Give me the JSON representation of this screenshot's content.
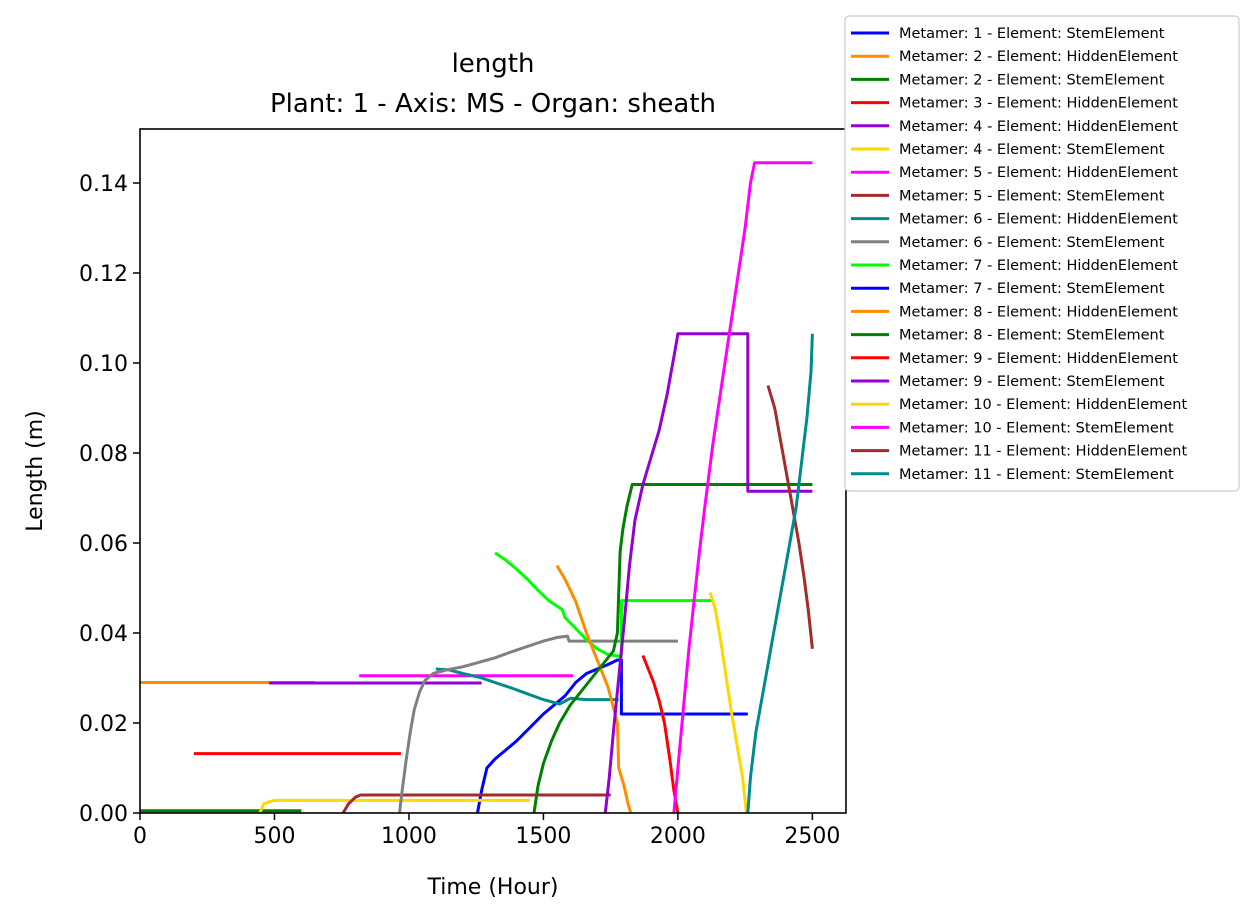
{
  "chart_data": {
    "type": "line",
    "title": "length",
    "subtitle": "Plant: 1 - Axis: MS - Organ: sheath",
    "xlabel": "Time (Hour)",
    "ylabel": "Length (m)",
    "xlim": [
      0,
      2625
    ],
    "ylim": [
      0,
      0.152
    ],
    "xticks": [
      0,
      500,
      1000,
      1500,
      2000,
      2500
    ],
    "xtick_labels": [
      "0",
      "500",
      "1000",
      "1500",
      "2000",
      "2500"
    ],
    "yticks": [
      0,
      0.02,
      0.04,
      0.06,
      0.08,
      0.1,
      0.12,
      0.14
    ],
    "ytick_labels": [
      "0.00",
      "0.02",
      "0.04",
      "0.06",
      "0.08",
      "0.10",
      "0.12",
      "0.14"
    ],
    "grid": false,
    "legend_position": "outside-top-right",
    "series": [
      {
        "name": "Metamer: 1 - Element: StemElement",
        "color": "#0000ff",
        "points": [
          [
            1255,
            0
          ],
          [
            1270,
            0.005
          ],
          [
            1290,
            0.01
          ],
          [
            1320,
            0.012
          ],
          [
            1360,
            0.014
          ],
          [
            1400,
            0.016
          ],
          [
            1450,
            0.019
          ],
          [
            1500,
            0.022
          ],
          [
            1540,
            0.024
          ],
          [
            1580,
            0.026
          ],
          [
            1620,
            0.029
          ],
          [
            1660,
            0.031
          ],
          [
            1700,
            0.032
          ],
          [
            1740,
            0.033
          ],
          [
            1775,
            0.034
          ],
          [
            1790,
            0.034
          ],
          [
            1790,
            0.022
          ],
          [
            2260,
            0.022
          ]
        ]
      },
      {
        "name": "Metamer: 2 - Element: HiddenElement",
        "color": "#ff8c00",
        "points": [
          [
            0,
            0.029
          ],
          [
            650,
            0.029
          ]
        ]
      },
      {
        "name": "Metamer: 2 - Element: StemElement",
        "color": "#008000",
        "points": [
          [
            0,
            0.0005
          ],
          [
            600,
            0.0005
          ]
        ]
      },
      {
        "name": "Metamer: 3 - Element: HiddenElement",
        "color": "#ff0000",
        "points": [
          [
            200,
            0.0132
          ],
          [
            970,
            0.0132
          ]
        ]
      },
      {
        "name": "Metamer: 4 - Element: HiddenElement",
        "color": "#9400d3",
        "points": [
          [
            480,
            0.0289
          ],
          [
            1270,
            0.0289
          ]
        ]
      },
      {
        "name": "Metamer: 4 - Element: StemElement",
        "color": "#ffd700",
        "points": [
          [
            445,
            0
          ],
          [
            460,
            0.002
          ],
          [
            480,
            0.0025
          ],
          [
            500,
            0.0028
          ],
          [
            1450,
            0.0028
          ]
        ]
      },
      {
        "name": "Metamer: 5 - Element: HiddenElement",
        "color": "#ff00ff",
        "points": [
          [
            815,
            0.0305
          ],
          [
            1610,
            0.0305
          ]
        ]
      },
      {
        "name": "Metamer: 5 - Element: StemElement",
        "color": "#a52a2a",
        "points": [
          [
            755,
            0
          ],
          [
            775,
            0.002
          ],
          [
            800,
            0.0035
          ],
          [
            820,
            0.004
          ],
          [
            1750,
            0.004
          ]
        ]
      },
      {
        "name": "Metamer: 6 - Element: HiddenElement",
        "color": "#008b8b",
        "points": [
          [
            1100,
            0.032
          ],
          [
            1150,
            0.0318
          ],
          [
            1200,
            0.031
          ],
          [
            1260,
            0.0302
          ],
          [
            1320,
            0.029
          ],
          [
            1380,
            0.0278
          ],
          [
            1440,
            0.0265
          ],
          [
            1500,
            0.0252
          ],
          [
            1560,
            0.0242
          ],
          [
            1600,
            0.0255
          ],
          [
            1660,
            0.0252
          ],
          [
            1780,
            0.0252
          ]
        ]
      },
      {
        "name": "Metamer: 6 - Element: StemElement",
        "color": "#808080",
        "points": [
          [
            965,
            0
          ],
          [
            975,
            0.005
          ],
          [
            990,
            0.012
          ],
          [
            1005,
            0.018
          ],
          [
            1020,
            0.023
          ],
          [
            1040,
            0.027
          ],
          [
            1060,
            0.0295
          ],
          [
            1090,
            0.031
          ],
          [
            1140,
            0.0318
          ],
          [
            1200,
            0.0325
          ],
          [
            1260,
            0.0335
          ],
          [
            1320,
            0.0345
          ],
          [
            1380,
            0.0358
          ],
          [
            1440,
            0.037
          ],
          [
            1500,
            0.0382
          ],
          [
            1550,
            0.039
          ],
          [
            1590,
            0.0393
          ],
          [
            1595,
            0.0382
          ],
          [
            2000,
            0.0382
          ]
        ]
      },
      {
        "name": "Metamer: 7 - Element: HiddenElement",
        "color": "#00ff00",
        "points": [
          [
            1320,
            0.0578
          ],
          [
            1360,
            0.0562
          ],
          [
            1400,
            0.0542
          ],
          [
            1440,
            0.052
          ],
          [
            1480,
            0.0495
          ],
          [
            1520,
            0.0472
          ],
          [
            1570,
            0.0452
          ],
          [
            1580,
            0.0435
          ],
          [
            1620,
            0.041
          ],
          [
            1660,
            0.0385
          ],
          [
            1700,
            0.0365
          ],
          [
            1740,
            0.0352
          ],
          [
            1790,
            0.0348
          ],
          [
            1790,
            0.0472
          ],
          [
            2125,
            0.0472
          ]
        ]
      },
      {
        "name": "Metamer: 7 - Element: StemElement",
        "color": "#0000ff",
        "points": []
      },
      {
        "name": "Metamer: 8 - Element: HiddenElement",
        "color": "#ff8c00",
        "points": [
          [
            1550,
            0.055
          ],
          [
            1580,
            0.052
          ],
          [
            1620,
            0.047
          ],
          [
            1660,
            0.04
          ],
          [
            1700,
            0.034
          ],
          [
            1740,
            0.028
          ],
          [
            1775,
            0.02
          ],
          [
            1780,
            0.01
          ],
          [
            1800,
            0.006
          ],
          [
            1815,
            0.002
          ],
          [
            1825,
            0
          ]
        ]
      },
      {
        "name": "Metamer: 8 - Element: StemElement",
        "color": "#008000",
        "points": [
          [
            1465,
            0
          ],
          [
            1480,
            0.006
          ],
          [
            1500,
            0.011
          ],
          [
            1530,
            0.016
          ],
          [
            1560,
            0.02
          ],
          [
            1600,
            0.024
          ],
          [
            1640,
            0.027
          ],
          [
            1680,
            0.03
          ],
          [
            1720,
            0.033
          ],
          [
            1760,
            0.036
          ],
          [
            1775,
            0.04
          ],
          [
            1785,
            0.058
          ],
          [
            1795,
            0.063
          ],
          [
            1810,
            0.068
          ],
          [
            1830,
            0.073
          ],
          [
            2500,
            0.073
          ]
        ]
      },
      {
        "name": "Metamer: 9 - Element: HiddenElement",
        "color": "#ff0000",
        "points": [
          [
            1870,
            0.035
          ],
          [
            1890,
            0.032
          ],
          [
            1910,
            0.029
          ],
          [
            1930,
            0.025
          ],
          [
            1950,
            0.02
          ],
          [
            1970,
            0.012
          ],
          [
            1985,
            0.005
          ],
          [
            2000,
            0
          ]
        ]
      },
      {
        "name": "Metamer: 9 - Element: StemElement",
        "color": "#9400d3",
        "points": [
          [
            1730,
            0
          ],
          [
            1745,
            0.008
          ],
          [
            1760,
            0.018
          ],
          [
            1780,
            0.03
          ],
          [
            1800,
            0.042
          ],
          [
            1820,
            0.055
          ],
          [
            1840,
            0.065
          ],
          [
            1870,
            0.073
          ],
          [
            1900,
            0.079
          ],
          [
            1930,
            0.085
          ],
          [
            1960,
            0.093
          ],
          [
            1990,
            0.103
          ],
          [
            2000,
            0.1065
          ],
          [
            2260,
            0.1065
          ],
          [
            2260,
            0.0715
          ],
          [
            2500,
            0.0715
          ]
        ]
      },
      {
        "name": "Metamer: 10 - Element: HiddenElement",
        "color": "#ffd700",
        "points": [
          [
            2120,
            0.049
          ],
          [
            2140,
            0.045
          ],
          [
            2160,
            0.038
          ],
          [
            2180,
            0.03
          ],
          [
            2200,
            0.022
          ],
          [
            2220,
            0.015
          ],
          [
            2240,
            0.008
          ],
          [
            2255,
            0
          ]
        ]
      },
      {
        "name": "Metamer: 10 - Element: StemElement",
        "color": "#ff00ff",
        "points": [
          [
            1985,
            0
          ],
          [
            2000,
            0.01
          ],
          [
            2020,
            0.023
          ],
          [
            2040,
            0.036
          ],
          [
            2060,
            0.047
          ],
          [
            2080,
            0.058
          ],
          [
            2100,
            0.068
          ],
          [
            2130,
            0.082
          ],
          [
            2160,
            0.094
          ],
          [
            2190,
            0.106
          ],
          [
            2220,
            0.118
          ],
          [
            2250,
            0.13
          ],
          [
            2270,
            0.14
          ],
          [
            2285,
            0.1445
          ],
          [
            2500,
            0.1445
          ]
        ]
      },
      {
        "name": "Metamer: 11 - Element: HiddenElement",
        "color": "#a52a2a",
        "points": [
          [
            2335,
            0.095
          ],
          [
            2360,
            0.09
          ],
          [
            2390,
            0.08
          ],
          [
            2420,
            0.07
          ],
          [
            2450,
            0.06
          ],
          [
            2470,
            0.052
          ],
          [
            2485,
            0.045
          ],
          [
            2500,
            0.0365
          ]
        ]
      },
      {
        "name": "Metamer: 11 - Element: StemElement",
        "color": "#008b8b",
        "points": [
          [
            2260,
            0
          ],
          [
            2270,
            0.008
          ],
          [
            2290,
            0.018
          ],
          [
            2320,
            0.028
          ],
          [
            2350,
            0.038
          ],
          [
            2380,
            0.048
          ],
          [
            2410,
            0.058
          ],
          [
            2440,
            0.068
          ],
          [
            2460,
            0.078
          ],
          [
            2480,
            0.088
          ],
          [
            2495,
            0.098
          ],
          [
            2500,
            0.1065
          ]
        ]
      }
    ]
  }
}
